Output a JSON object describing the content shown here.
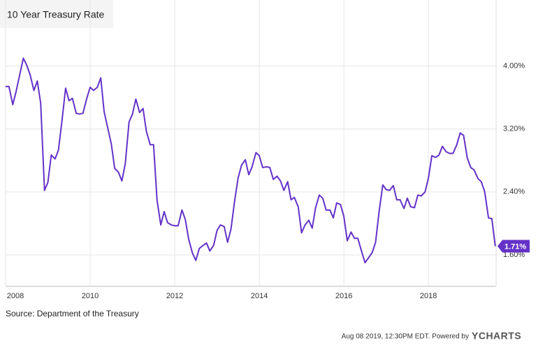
{
  "chart_data": {
    "type": "line",
    "title": "10 Year Treasury Rate",
    "source": "Source: Department of the Treasury",
    "timestamp": "Aug 08 2019, 12:30PM EDT.  Powered by",
    "brand": "YCHARTS",
    "end_label": "1.71%",
    "xlim": [
      2008,
      2019.6
    ],
    "xticks": [
      2008,
      2010,
      2012,
      2014,
      2016,
      2018
    ],
    "ylim": [
      1.2,
      4.84
    ],
    "yticks": [
      {
        "value": 1.6,
        "label": "1.60%"
      },
      {
        "value": 2.4,
        "label": "2.40%"
      },
      {
        "value": 3.2,
        "label": "3.20%"
      },
      {
        "value": 4,
        "label": "4.00%"
      }
    ],
    "grid": true,
    "x": [
      2008.0,
      2008.08,
      2008.17,
      2008.25,
      2008.33,
      2008.42,
      2008.5,
      2008.58,
      2008.67,
      2008.75,
      2008.83,
      2008.92,
      2009.0,
      2009.08,
      2009.17,
      2009.25,
      2009.33,
      2009.42,
      2009.5,
      2009.58,
      2009.67,
      2009.75,
      2009.83,
      2009.92,
      2010.0,
      2010.08,
      2010.17,
      2010.25,
      2010.33,
      2010.42,
      2010.5,
      2010.58,
      2010.67,
      2010.75,
      2010.83,
      2010.92,
      2011.0,
      2011.08,
      2011.17,
      2011.25,
      2011.33,
      2011.42,
      2011.5,
      2011.58,
      2011.67,
      2011.75,
      2011.83,
      2011.92,
      2012.0,
      2012.08,
      2012.17,
      2012.25,
      2012.33,
      2012.42,
      2012.5,
      2012.58,
      2012.67,
      2012.75,
      2012.83,
      2012.92,
      2013.0,
      2013.08,
      2013.17,
      2013.25,
      2013.33,
      2013.42,
      2013.5,
      2013.58,
      2013.67,
      2013.75,
      2013.83,
      2013.92,
      2014.0,
      2014.08,
      2014.17,
      2014.25,
      2014.33,
      2014.42,
      2014.5,
      2014.58,
      2014.67,
      2014.75,
      2014.83,
      2014.92,
      2015.0,
      2015.08,
      2015.17,
      2015.25,
      2015.33,
      2015.42,
      2015.5,
      2015.58,
      2015.67,
      2015.75,
      2015.83,
      2015.92,
      2016.0,
      2016.08,
      2016.17,
      2016.25,
      2016.33,
      2016.42,
      2016.5,
      2016.58,
      2016.67,
      2016.75,
      2016.83,
      2016.92,
      2017.0,
      2017.08,
      2017.17,
      2017.25,
      2017.33,
      2017.42,
      2017.5,
      2017.58,
      2017.67,
      2017.75,
      2017.83,
      2017.92,
      2018.0,
      2018.08,
      2018.17,
      2018.25,
      2018.33,
      2018.42,
      2018.5,
      2018.58,
      2018.67,
      2018.75,
      2018.83,
      2018.92,
      2019.0,
      2019.08,
      2019.17,
      2019.25,
      2019.33,
      2019.42,
      2019.5,
      2019.58
    ],
    "series": [
      {
        "name": "10 Year Treasury Rate",
        "color": "#6432c8",
        "values": [
          3.74,
          3.74,
          3.51,
          3.68,
          3.88,
          4.1,
          4.01,
          3.89,
          3.69,
          3.81,
          3.53,
          2.42,
          2.52,
          2.87,
          2.82,
          2.93,
          3.29,
          3.72,
          3.56,
          3.59,
          3.4,
          3.39,
          3.4,
          3.59,
          3.73,
          3.69,
          3.73,
          3.85,
          3.42,
          3.2,
          3.01,
          2.7,
          2.65,
          2.54,
          2.76,
          3.29,
          3.39,
          3.58,
          3.41,
          3.46,
          3.17,
          3.0,
          3.0,
          2.3,
          1.98,
          2.15,
          2.01,
          1.98,
          1.97,
          1.97,
          2.17,
          2.05,
          1.8,
          1.62,
          1.53,
          1.68,
          1.72,
          1.75,
          1.65,
          1.72,
          1.91,
          1.98,
          1.96,
          1.76,
          1.93,
          2.3,
          2.58,
          2.74,
          2.81,
          2.62,
          2.72,
          2.9,
          2.86,
          2.71,
          2.72,
          2.71,
          2.56,
          2.6,
          2.54,
          2.42,
          2.53,
          2.3,
          2.33,
          2.21,
          1.88,
          1.98,
          2.04,
          1.94,
          2.2,
          2.36,
          2.32,
          2.17,
          2.17,
          2.07,
          2.26,
          2.24,
          2.09,
          1.78,
          1.89,
          1.81,
          1.81,
          1.64,
          1.5,
          1.56,
          1.63,
          1.76,
          2.14,
          2.49,
          2.43,
          2.42,
          2.48,
          2.3,
          2.3,
          2.19,
          2.32,
          2.21,
          2.2,
          2.36,
          2.35,
          2.4,
          2.58,
          2.86,
          2.84,
          2.87,
          2.98,
          2.91,
          2.89,
          2.89,
          3.0,
          3.15,
          3.12,
          2.83,
          2.71,
          2.68,
          2.57,
          2.53,
          2.4,
          2.07,
          2.06,
          1.71
        ]
      }
    ]
  }
}
